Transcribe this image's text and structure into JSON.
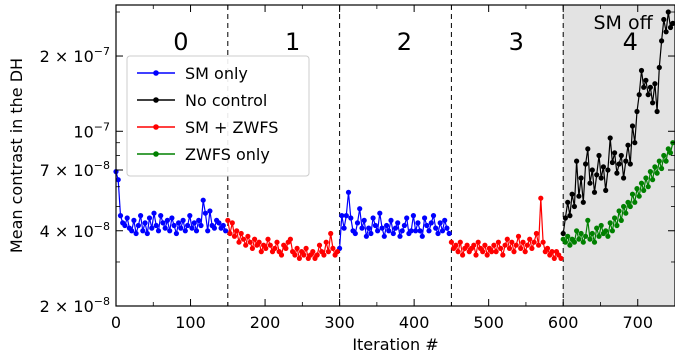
{
  "chart_data": {
    "type": "line",
    "xlabel": "Iteration #",
    "ylabel": "Mean contrast in the DH",
    "xlim": [
      0,
      750
    ],
    "ylim": [
      2e-08,
      3.2e-07
    ],
    "y_scale": "log",
    "x_ticks": [
      0,
      100,
      200,
      300,
      400,
      500,
      600,
      700
    ],
    "x_tick_labels": [
      "0",
      "100",
      "200",
      "300",
      "400",
      "500",
      "600",
      "700"
    ],
    "y_ticks": [
      {
        "value": 2e-08,
        "mantissa": "2",
        "exponent": "−8"
      },
      {
        "value": 4e-08,
        "mantissa": "4",
        "exponent": "−8"
      },
      {
        "value": 7e-08,
        "mantissa": "7",
        "exponent": "−8"
      },
      {
        "value": 1e-07,
        "mantissa": "",
        "exponent": "−7"
      },
      {
        "value": 2e-07,
        "mantissa": "2",
        "exponent": "−7"
      }
    ],
    "times_sign": "×",
    "tick_base": "10",
    "phase_boundaries": [
      150,
      300,
      450,
      600
    ],
    "phase_labels": [
      {
        "text": "0",
        "x": 87
      },
      {
        "text": "1",
        "x": 237
      },
      {
        "text": "2",
        "x": 387
      },
      {
        "text": "3",
        "x": 537
      },
      {
        "text": "4",
        "x": 690
      }
    ],
    "shaded_region": {
      "x_start": 600,
      "x_end": 750,
      "label": "SM off",
      "color": "#e3e3e3"
    },
    "legend": {
      "position": "upper-left"
    },
    "series": [
      {
        "name": "SM only",
        "color": "#0000ff",
        "segments": [
          {
            "x_start": 0,
            "x_step": 3,
            "values": [
              6.9e-08,
              6.4e-08,
              4.6e-08,
              4.3e-08,
              4.2e-08,
              4.5e-08,
              4.1e-08,
              4e-08,
              4.4e-08,
              3.9e-08,
              4.2e-08,
              4.6e-08,
              4e-08,
              4.3e-08,
              3.9e-08,
              4.5e-08,
              4.1e-08,
              4.7e-08,
              4.2e-08,
              4e-08,
              4.6e-08,
              4.3e-08,
              4.1e-08,
              4.4e-08,
              4e-08,
              4.5e-08,
              4.2e-08,
              3.9e-08,
              4.3e-08,
              4.1e-08,
              4.4e-08,
              4e-08,
              4.2e-08,
              4.6e-08,
              4.1e-08,
              4.3e-08,
              4e-08,
              4.4e-08,
              4.2e-08,
              5.3e-08,
              4.7e-08,
              4e-08,
              4.8e-08,
              4.2e-08,
              4.1e-08,
              4.4e-08,
              4.3e-08,
              4.1e-08,
              4.2e-08,
              4e-08
            ]
          },
          {
            "x_start": 300,
            "x_step": 3,
            "values": [
              3.4e-08,
              4.6e-08,
              4.1e-08,
              4.6e-08,
              5.7e-08,
              4.5e-08,
              4e-08,
              3.9e-08,
              4.3e-08,
              4.9e-08,
              4.1e-08,
              4.4e-08,
              3.8e-08,
              4.1e-08,
              3.9e-08,
              4.5e-08,
              4.2e-08,
              4e-08,
              4.7e-08,
              4.1e-08,
              3.8e-08,
              4.2e-08,
              4e-08,
              4.4e-08,
              3.9e-08,
              4.1e-08,
              4.3e-08,
              3.8e-08,
              4e-08,
              4.2e-08,
              4.5e-08,
              3.9e-08,
              4e-08,
              4.6e-08,
              4e-08,
              4.3e-08,
              4e-08,
              3.8e-08,
              4.5e-08,
              4.2e-08,
              4e-08,
              4.3e-08,
              4.6e-08,
              4.1e-08,
              3.9e-08,
              4.3e-08,
              4e-08,
              4.4e-08,
              4.1e-08,
              3.9e-08
            ]
          }
        ]
      },
      {
        "name": "No control",
        "color": "#000000",
        "segments": [
          {
            "x_start": 600,
            "x_step": 3,
            "values": [
              3.9e-08,
              4.5e-08,
              5.2e-08,
              4.6e-08,
              5.6e-08,
              5e-08,
              7.6e-08,
              5.5e-08,
              6.5e-08,
              5.2e-08,
              7.4e-08,
              8.5e-08,
              6.2e-08,
              7e-08,
              5.7e-08,
              6.7e-08,
              8e-08,
              6.5e-08,
              7.2e-08,
              5.8e-08,
              7e-08,
              9.4e-08,
              7.5e-08,
              8.2e-08,
              6.8e-08,
              7.4e-08,
              8e-08,
              6.5e-08,
              7.6e-08,
              8.8e-08,
              7.4e-08,
              1.05e-07,
              9e-08,
              1.2e-07,
              1.4e-07,
              1.75e-07,
              1.5e-07,
              1.6e-07,
              1.4e-07,
              1.5e-07,
              1.3e-07,
              1.55e-07,
              1.2e-07,
              1.8e-07,
              2.3e-07,
              2.8e-07,
              2.5e-07,
              3e-07,
              2.6e-07,
              2.7e-07
            ]
          }
        ]
      },
      {
        "name": "SM + ZWFS",
        "color": "#ff0000",
        "segments": [
          {
            "x_start": 150,
            "x_step": 3,
            "values": [
              4.4e-08,
              3.9e-08,
              4.3e-08,
              3.8e-08,
              4e-08,
              3.6e-08,
              3.9e-08,
              3.7e-08,
              3.5e-08,
              3.8e-08,
              3.6e-08,
              3.4e-08,
              3.7e-08,
              3.5e-08,
              3.6e-08,
              3.3e-08,
              3.5e-08,
              3.4e-08,
              3.7e-08,
              3.5e-08,
              3.3e-08,
              3.4e-08,
              3.6e-08,
              3.3e-08,
              3.2e-08,
              3.5e-08,
              3.4e-08,
              3.6e-08,
              3.7e-08,
              3.3e-08,
              3.2e-08,
              3.4e-08,
              3.1e-08,
              3.3e-08,
              3.2e-08,
              3.4e-08,
              3.1e-08,
              3.2e-08,
              3.3e-08,
              3.1e-08,
              3.2e-08,
              3.5e-08,
              3.3e-08,
              3.2e-08,
              3.6e-08,
              3.3e-08,
              3.9e-08,
              3.4e-08,
              3.2e-08,
              3.3e-08
            ]
          },
          {
            "x_start": 450,
            "x_step": 3,
            "values": [
              3.6e-08,
              3.4e-08,
              3.5e-08,
              3.3e-08,
              3.6e-08,
              3.2e-08,
              3.4e-08,
              3.5e-08,
              3.3e-08,
              3.4e-08,
              3.5e-08,
              3.2e-08,
              3.6e-08,
              3.4e-08,
              3.3e-08,
              3.5e-08,
              3.2e-08,
              3.4e-08,
              3.3e-08,
              3.5e-08,
              3.3e-08,
              3.6e-08,
              3.4e-08,
              3.2e-08,
              3.5e-08,
              3.7e-08,
              3.4e-08,
              3.6e-08,
              3.3e-08,
              3.5e-08,
              3.8e-08,
              3.4e-08,
              3.6e-08,
              3.3e-08,
              3.5e-08,
              3.7e-08,
              3.4e-08,
              3.6e-08,
              3.9e-08,
              3.5e-08,
              5.4e-08,
              3.6e-08,
              3.3e-08,
              3.4e-08,
              3.2e-08,
              3.3e-08,
              3.1e-08,
              3.3e-08,
              3.2e-08,
              3.1e-08
            ]
          }
        ]
      },
      {
        "name": "ZWFS only",
        "color": "#008000",
        "segments": [
          {
            "x_start": 600,
            "x_step": 3,
            "values": [
              3.7e-08,
              3.6e-08,
              3.8e-08,
              3.5e-08,
              3.7e-08,
              3.6e-08,
              4e-08,
              3.7e-08,
              3.9e-08,
              3.6e-08,
              3.8e-08,
              4.4e-08,
              3.7e-08,
              3.9e-08,
              3.6e-08,
              4.1e-08,
              3.8e-08,
              4.2e-08,
              3.9e-08,
              4e-08,
              3.8e-08,
              4.3e-08,
              4e-08,
              4.5e-08,
              4.2e-08,
              4.8e-08,
              4.4e-08,
              5e-08,
              4.7e-08,
              5.2e-08,
              5e-08,
              5.6e-08,
              5.2e-08,
              5.9e-08,
              5.5e-08,
              6.2e-08,
              5.8e-08,
              6.5e-08,
              6e-08,
              6.9e-08,
              6.4e-08,
              7.2e-08,
              6.8e-08,
              7.6e-08,
              7.1e-08,
              8e-08,
              7.6e-08,
              8.5e-08,
              8.2e-08,
              9e-08
            ]
          }
        ]
      }
    ]
  }
}
